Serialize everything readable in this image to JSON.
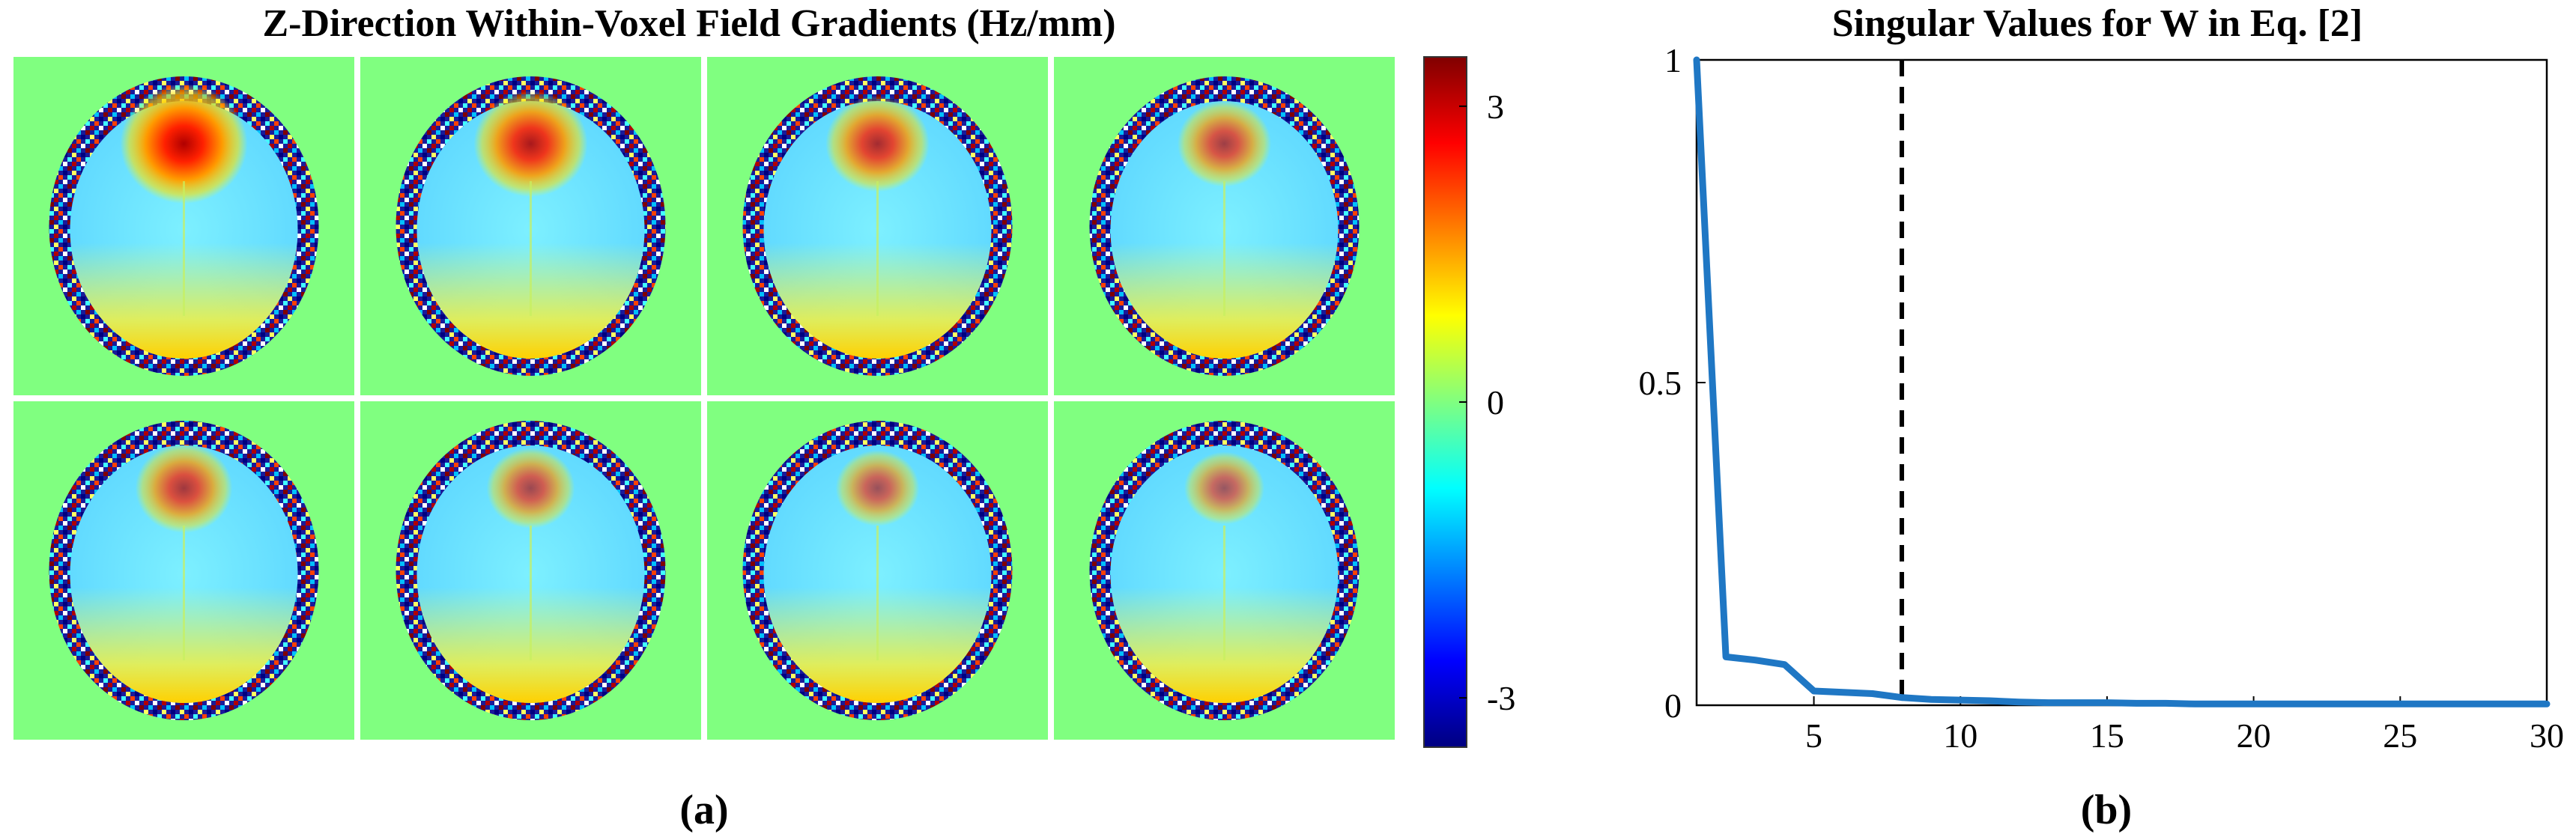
{
  "panel_a": {
    "title": "Z-Direction Within-Voxel Field Gradients (Hz/mm)",
    "label": "(a)",
    "colorbar": {
      "min": -3.5,
      "max": 3.5,
      "ticks": [
        {
          "value": 3,
          "label": "3"
        },
        {
          "value": 0,
          "label": "0"
        },
        {
          "value": -3,
          "label": "-3"
        }
      ]
    },
    "background_color": "#80ff80",
    "tiles": [
      {
        "row": 0,
        "col": 0,
        "frontal_hotspot": 1.0
      },
      {
        "row": 0,
        "col": 1,
        "frontal_hotspot": 0.8
      },
      {
        "row": 0,
        "col": 2,
        "frontal_hotspot": 0.65
      },
      {
        "row": 0,
        "col": 3,
        "frontal_hotspot": 0.5
      },
      {
        "row": 1,
        "col": 0,
        "frontal_hotspot": 0.55
      },
      {
        "row": 1,
        "col": 1,
        "frontal_hotspot": 0.42
      },
      {
        "row": 1,
        "col": 2,
        "frontal_hotspot": 0.35
      },
      {
        "row": 1,
        "col": 3,
        "frontal_hotspot": 0.3
      }
    ]
  },
  "panel_b": {
    "label": "(b)",
    "chart_data": {
      "type": "line",
      "title": "Singular Values for W in Eq. [2]",
      "xlabel": "",
      "ylabel": "",
      "xlim": [
        1,
        30
      ],
      "ylim": [
        0,
        1
      ],
      "xticks": [
        5,
        10,
        15,
        20,
        25,
        30
      ],
      "yticks": [
        0,
        0.5,
        1
      ],
      "ytick_labels": [
        "0",
        "0.5",
        "1"
      ],
      "grid": false,
      "series": [
        {
          "color": "#1f77c4",
          "x": [
            1,
            2,
            3,
            4,
            5,
            6,
            7,
            8,
            9,
            10,
            11,
            12,
            13,
            14,
            15,
            16,
            17,
            18,
            19,
            20,
            21,
            22,
            23,
            24,
            25,
            26,
            27,
            28,
            29,
            30
          ],
          "y": [
            1.0,
            0.075,
            0.07,
            0.063,
            0.022,
            0.02,
            0.018,
            0.012,
            0.009,
            0.008,
            0.007,
            0.005,
            0.004,
            0.004,
            0.004,
            0.003,
            0.003,
            0.002,
            0.002,
            0.002,
            0.002,
            0.002,
            0.002,
            0.002,
            0.002,
            0.002,
            0.002,
            0.002,
            0.002,
            0.002
          ]
        }
      ],
      "reference_line": {
        "x": 8,
        "style": "dashed",
        "color": "#000000"
      }
    }
  }
}
